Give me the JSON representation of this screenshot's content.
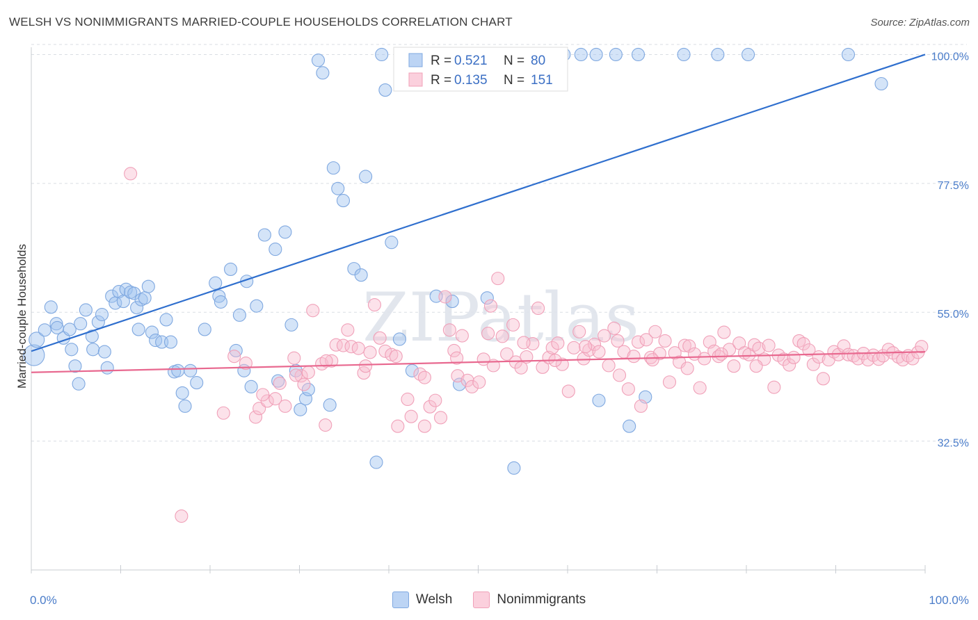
{
  "header": {
    "title": "WELSH VS NONIMMIGRANTS MARRIED-COUPLE HOUSEHOLDS CORRELATION CHART",
    "source": "Source: ZipAtlas.com"
  },
  "watermark": "ZIPatlas",
  "chart_data": {
    "type": "scatter",
    "title": "WELSH VS NONIMMIGRANTS MARRIED-COUPLE HOUSEHOLDS CORRELATION CHART",
    "xlabel": "",
    "ylabel": "Married-couple Households",
    "xlim": [
      0,
      100
    ],
    "ylim": [
      10,
      102
    ],
    "x_tick_labels": [
      "0.0%",
      "100.0%"
    ],
    "y_ticks": [
      {
        "value": 100.0,
        "label": "100.0%"
      },
      {
        "value": 77.5,
        "label": "77.5%"
      },
      {
        "value": 55.0,
        "label": "55.0%"
      },
      {
        "value": 32.5,
        "label": "32.5%"
      }
    ],
    "grid": true,
    "legend_position": "top-center",
    "legend": [
      {
        "r_label": "R =",
        "r_value": "0.521",
        "n_label": "N =",
        "n_value": "80"
      },
      {
        "r_label": "R =",
        "r_value": "0.135",
        "n_label": "N =",
        "n_value": "151"
      }
    ],
    "series": [
      {
        "name": "Welsh",
        "color": "#7fa8e0",
        "fill": "rgba(160,196,240,0.45)",
        "trend_color": "#2f6fce",
        "trend": [
          [
            0,
            48.2
          ],
          [
            100,
            100.0
          ]
        ],
        "points": [
          [
            0.3,
            47.5
          ],
          [
            0.6,
            50.2
          ],
          [
            1.5,
            51.9
          ],
          [
            2.2,
            55.9
          ],
          [
            2.8,
            53.0
          ],
          [
            2.9,
            52.3
          ],
          [
            3.6,
            50.5
          ],
          [
            4.3,
            52.0
          ],
          [
            4.5,
            48.5
          ],
          [
            4.9,
            45.6
          ],
          [
            5.3,
            42.5
          ],
          [
            5.5,
            53.0
          ],
          [
            6.1,
            55.4
          ],
          [
            6.8,
            50.8
          ],
          [
            6.9,
            48.5
          ],
          [
            7.5,
            53.3
          ],
          [
            7.9,
            54.6
          ],
          [
            8.2,
            48.1
          ],
          [
            8.5,
            45.3
          ],
          [
            9.0,
            57.8
          ],
          [
            9.4,
            56.6
          ],
          [
            9.8,
            58.6
          ],
          [
            10.3,
            56.9
          ],
          [
            10.6,
            59.0
          ],
          [
            11.1,
            58.5
          ],
          [
            11.5,
            58.3
          ],
          [
            11.8,
            55.8
          ],
          [
            12.0,
            52.0
          ],
          [
            12.3,
            57.2
          ],
          [
            12.7,
            57.5
          ],
          [
            13.1,
            59.5
          ],
          [
            13.5,
            51.5
          ],
          [
            13.9,
            50.1
          ],
          [
            14.6,
            49.8
          ],
          [
            15.1,
            53.7
          ],
          [
            15.6,
            49.8
          ],
          [
            16.0,
            44.6
          ],
          [
            16.4,
            44.8
          ],
          [
            16.9,
            40.9
          ],
          [
            17.2,
            38.6
          ],
          [
            17.8,
            44.8
          ],
          [
            18.5,
            42.7
          ],
          [
            19.4,
            52.0
          ],
          [
            20.6,
            60.1
          ],
          [
            21.0,
            57.8
          ],
          [
            21.2,
            56.8
          ],
          [
            22.3,
            62.5
          ],
          [
            22.9,
            48.3
          ],
          [
            23.3,
            54.5
          ],
          [
            23.8,
            44.8
          ],
          [
            24.1,
            60.4
          ],
          [
            24.6,
            42.0
          ],
          [
            25.2,
            56.1
          ],
          [
            26.1,
            68.5
          ],
          [
            27.3,
            66.0
          ],
          [
            27.6,
            43.0
          ],
          [
            28.4,
            69.0
          ],
          [
            29.1,
            52.8
          ],
          [
            29.6,
            44.8
          ],
          [
            30.1,
            38.0
          ],
          [
            30.7,
            39.9
          ],
          [
            31.0,
            41.5
          ],
          [
            32.1,
            99.0
          ],
          [
            32.6,
            96.8
          ],
          [
            33.4,
            38.8
          ],
          [
            33.8,
            80.2
          ],
          [
            34.3,
            76.6
          ],
          [
            34.9,
            74.5
          ],
          [
            36.1,
            62.6
          ],
          [
            36.9,
            61.5
          ],
          [
            37.4,
            78.7
          ],
          [
            38.6,
            28.8
          ],
          [
            39.2,
            100.0
          ],
          [
            39.6,
            93.8
          ],
          [
            40.3,
            67.2
          ],
          [
            41.2,
            50.3
          ],
          [
            45.3,
            57.8
          ],
          [
            47.1,
            56.9
          ],
          [
            47.9,
            42.4
          ],
          [
            49.3,
            100.0
          ],
          [
            51.0,
            57.5
          ],
          [
            51.2,
            100.0
          ],
          [
            52.4,
            100.0
          ],
          [
            54.0,
            27.8
          ],
          [
            57.8,
            100.0
          ],
          [
            59.6,
            100.0
          ],
          [
            61.5,
            100.0
          ],
          [
            63.2,
            100.0
          ],
          [
            65.4,
            100.0
          ],
          [
            67.9,
            100.0
          ],
          [
            73.0,
            100.0
          ],
          [
            76.8,
            100.0
          ],
          [
            80.2,
            100.0
          ],
          [
            91.4,
            100.0
          ],
          [
            95.1,
            94.9
          ],
          [
            42.6,
            44.8
          ],
          [
            63.5,
            39.6
          ],
          [
            66.9,
            35.1
          ],
          [
            68.7,
            40.2
          ]
        ]
      },
      {
        "name": "Nonimmigrants",
        "color": "#f0a0b8",
        "fill": "rgba(248,190,208,0.45)",
        "trend_color": "#e8688f",
        "trend": [
          [
            0,
            44.5
          ],
          [
            100,
            48.1
          ]
        ],
        "points": [
          [
            11.1,
            79.2
          ],
          [
            16.8,
            19.4
          ],
          [
            21.5,
            37.4
          ],
          [
            22.7,
            47.3
          ],
          [
            24.0,
            46.1
          ],
          [
            25.1,
            36.7
          ],
          [
            25.5,
            38.2
          ],
          [
            26.4,
            39.5
          ],
          [
            27.3,
            39.9
          ],
          [
            27.8,
            42.6
          ],
          [
            28.4,
            38.6
          ],
          [
            29.4,
            47.0
          ],
          [
            30.2,
            43.9
          ],
          [
            30.5,
            42.4
          ],
          [
            31.0,
            44.5
          ],
          [
            31.5,
            55.3
          ],
          [
            32.5,
            46.0
          ],
          [
            32.9,
            35.3
          ],
          [
            33.6,
            46.5
          ],
          [
            34.1,
            49.3
          ],
          [
            34.9,
            49.2
          ],
          [
            35.4,
            51.9
          ],
          [
            35.8,
            49.0
          ],
          [
            36.6,
            48.7
          ],
          [
            37.2,
            44.4
          ],
          [
            37.9,
            48.0
          ],
          [
            38.4,
            56.3
          ],
          [
            39.0,
            50.5
          ],
          [
            39.6,
            48.2
          ],
          [
            40.3,
            47.6
          ],
          [
            41.0,
            35.1
          ],
          [
            42.1,
            39.8
          ],
          [
            42.5,
            36.8
          ],
          [
            43.5,
            44.2
          ],
          [
            44.0,
            35.1
          ],
          [
            44.6,
            38.5
          ],
          [
            45.2,
            39.6
          ],
          [
            45.8,
            36.6
          ],
          [
            46.3,
            57.7
          ],
          [
            46.8,
            51.9
          ],
          [
            47.3,
            48.3
          ],
          [
            47.7,
            43.9
          ],
          [
            48.2,
            50.9
          ],
          [
            48.8,
            43.1
          ],
          [
            49.3,
            42.0
          ],
          [
            50.1,
            42.8
          ],
          [
            50.6,
            46.8
          ],
          [
            51.1,
            51.3
          ],
          [
            51.4,
            56.1
          ],
          [
            52.2,
            60.9
          ],
          [
            52.7,
            50.8
          ],
          [
            53.2,
            47.7
          ],
          [
            53.9,
            52.8
          ],
          [
            54.2,
            46.3
          ],
          [
            54.8,
            45.3
          ],
          [
            55.4,
            47.2
          ],
          [
            56.1,
            49.5
          ],
          [
            56.7,
            55.7
          ],
          [
            57.2,
            45.4
          ],
          [
            57.9,
            47.1
          ],
          [
            58.3,
            48.8
          ],
          [
            58.9,
            49.6
          ],
          [
            59.4,
            45.9
          ],
          [
            60.1,
            41.2
          ],
          [
            60.7,
            48.8
          ],
          [
            61.3,
            51.6
          ],
          [
            61.8,
            46.9
          ],
          [
            62.4,
            48.4
          ],
          [
            63.0,
            49.4
          ],
          [
            63.5,
            48.1
          ],
          [
            64.1,
            50.9
          ],
          [
            64.6,
            45.7
          ],
          [
            65.2,
            52.2
          ],
          [
            65.6,
            50.0
          ],
          [
            66.3,
            48.1
          ],
          [
            66.8,
            41.6
          ],
          [
            67.4,
            47.3
          ],
          [
            67.9,
            49.8
          ],
          [
            68.2,
            38.6
          ],
          [
            68.8,
            50.2
          ],
          [
            69.3,
            47.1
          ],
          [
            69.8,
            51.6
          ],
          [
            70.3,
            47.8
          ],
          [
            70.9,
            50.0
          ],
          [
            71.4,
            42.8
          ],
          [
            72.0,
            47.9
          ],
          [
            72.5,
            46.3
          ],
          [
            73.1,
            49.2
          ],
          [
            73.6,
            49.1
          ],
          [
            74.2,
            47.7
          ],
          [
            74.8,
            41.8
          ],
          [
            75.3,
            46.9
          ],
          [
            75.9,
            49.8
          ],
          [
            76.4,
            48.2
          ],
          [
            76.9,
            47.3
          ],
          [
            77.5,
            51.5
          ],
          [
            78.1,
            48.5
          ],
          [
            78.6,
            45.6
          ],
          [
            79.2,
            49.6
          ],
          [
            79.8,
            47.9
          ],
          [
            80.3,
            47.6
          ],
          [
            80.9,
            49.3
          ],
          [
            81.4,
            48.7
          ],
          [
            82.0,
            46.8
          ],
          [
            82.5,
            49.2
          ],
          [
            83.1,
            41.9
          ],
          [
            83.6,
            47.5
          ],
          [
            84.2,
            46.8
          ],
          [
            84.8,
            45.8
          ],
          [
            85.3,
            47.1
          ],
          [
            85.9,
            50.0
          ],
          [
            86.4,
            49.5
          ],
          [
            87.0,
            48.4
          ],
          [
            87.5,
            45.9
          ],
          [
            88.1,
            47.2
          ],
          [
            88.6,
            43.4
          ],
          [
            89.2,
            46.7
          ],
          [
            89.8,
            48.1
          ],
          [
            90.3,
            47.6
          ],
          [
            90.9,
            49.1
          ],
          [
            91.4,
            47.6
          ],
          [
            92.0,
            47.4
          ],
          [
            92.5,
            46.9
          ],
          [
            93.1,
            47.8
          ],
          [
            93.6,
            46.7
          ],
          [
            94.2,
            47.5
          ],
          [
            94.8,
            46.8
          ],
          [
            95.3,
            47.4
          ],
          [
            95.9,
            48.5
          ],
          [
            96.4,
            47.9
          ],
          [
            97.0,
            47.2
          ],
          [
            97.5,
            46.7
          ],
          [
            98.1,
            47.4
          ],
          [
            98.6,
            46.9
          ],
          [
            99.2,
            48.0
          ],
          [
            99.6,
            49.0
          ],
          [
            25.9,
            40.6
          ],
          [
            29.6,
            44.0
          ],
          [
            33.0,
            46.5
          ],
          [
            37.4,
            45.6
          ],
          [
            40.8,
            47.3
          ],
          [
            44.0,
            43.6
          ],
          [
            47.6,
            47.0
          ],
          [
            51.7,
            45.7
          ],
          [
            55.1,
            49.7
          ],
          [
            58.6,
            46.6
          ],
          [
            62.0,
            49.0
          ],
          [
            65.8,
            44.0
          ],
          [
            69.5,
            46.7
          ],
          [
            73.4,
            45.2
          ],
          [
            77.2,
            47.7
          ],
          [
            81.1,
            45.6
          ]
        ]
      }
    ]
  }
}
